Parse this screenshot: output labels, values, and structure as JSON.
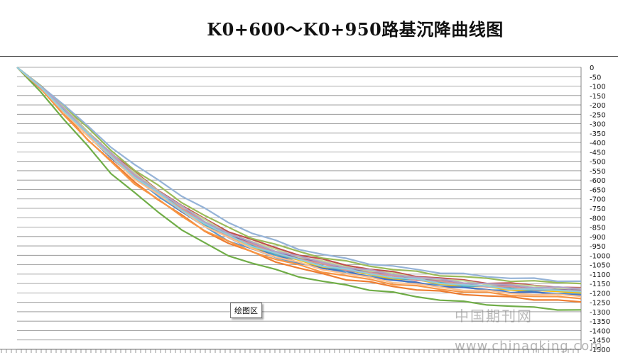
{
  "page": {
    "title": "K0+600～K0+950路基沉降曲线图"
  },
  "tooltip": {
    "text": "绘图区"
  },
  "watermark": {
    "cn": "中国期刊网",
    "url": "www.chinaqking.com"
  },
  "chart_data": {
    "type": "line",
    "title": "K0+600～K0+950路基沉降曲线图",
    "xlabel": "",
    "ylabel": "",
    "ylim": [
      -1500,
      0
    ],
    "y_ticks": [
      0,
      -50,
      -100,
      -150,
      -200,
      -250,
      -300,
      -350,
      -400,
      -450,
      -500,
      -550,
      -600,
      -650,
      -700,
      -750,
      -800,
      -850,
      -900,
      -950,
      -1000,
      -1050,
      -1100,
      -1150,
      -1200,
      -1250,
      -1300,
      -1350,
      -1400,
      -1450,
      -1500
    ],
    "y_tick_labels": [
      "0",
      "-50",
      "-100",
      "-150",
      "-200",
      "-250",
      "-300",
      "-350",
      "-400",
      "-450",
      "-500",
      "-550",
      "-600",
      "-650",
      "-700",
      "-750",
      "-800",
      "-850",
      "-900",
      "-950",
      "-1000",
      "-1050",
      "-1100",
      "-1150",
      "-1200",
      "-1250",
      "-1300",
      "-1350",
      "-1400",
      "-1450",
      "-1500"
    ],
    "grid": true,
    "x": [
      0,
      1,
      2,
      3,
      4,
      5,
      6,
      7,
      8,
      9,
      10,
      11,
      12,
      13,
      14,
      15,
      16,
      17,
      18,
      19,
      20,
      21,
      22,
      23,
      24
    ],
    "series": [
      {
        "color": "#5b9bd5",
        "values": [
          0,
          -110,
          -230,
          -360,
          -480,
          -590,
          -680,
          -770,
          -850,
          -920,
          -970,
          -1010,
          -1040,
          -1070,
          -1090,
          -1110,
          -1130,
          -1145,
          -1160,
          -1170,
          -1180,
          -1190,
          -1195,
          -1200,
          -1205
        ]
      },
      {
        "color": "#ed7d31",
        "values": [
          0,
          -115,
          -245,
          -380,
          -500,
          -610,
          -700,
          -790,
          -870,
          -935,
          -985,
          -1030,
          -1070,
          -1100,
          -1125,
          -1145,
          -1165,
          -1180,
          -1195,
          -1205,
          -1215,
          -1225,
          -1232,
          -1240,
          -1248
        ]
      },
      {
        "color": "#a5a5a5",
        "values": [
          0,
          -105,
          -220,
          -345,
          -460,
          -570,
          -660,
          -745,
          -820,
          -885,
          -935,
          -975,
          -1010,
          -1040,
          -1065,
          -1085,
          -1105,
          -1120,
          -1135,
          -1145,
          -1155,
          -1163,
          -1170,
          -1176,
          -1182
        ]
      },
      {
        "color": "#ffc000",
        "values": [
          0,
          -108,
          -228,
          -355,
          -470,
          -580,
          -672,
          -760,
          -838,
          -905,
          -955,
          -995,
          -1030,
          -1058,
          -1082,
          -1102,
          -1120,
          -1135,
          -1150,
          -1162,
          -1172,
          -1180,
          -1188,
          -1195,
          -1200
        ]
      },
      {
        "color": "#4472c4",
        "values": [
          0,
          -112,
          -235,
          -362,
          -478,
          -588,
          -676,
          -762,
          -840,
          -908,
          -960,
          -1003,
          -1038,
          -1066,
          -1090,
          -1112,
          -1132,
          -1148,
          -1162,
          -1174,
          -1184,
          -1193,
          -1200,
          -1206,
          -1212
        ]
      },
      {
        "color": "#70ad47",
        "values": [
          0,
          -125,
          -280,
          -420,
          -560,
          -670,
          -770,
          -860,
          -940,
          -1000,
          -1040,
          -1080,
          -1110,
          -1140,
          -1160,
          -1180,
          -1200,
          -1220,
          -1235,
          -1250,
          -1260,
          -1270,
          -1280,
          -1285,
          -1290
        ]
      },
      {
        "color": "#c0504d",
        "values": [
          0,
          -100,
          -215,
          -340,
          -455,
          -560,
          -650,
          -735,
          -810,
          -870,
          -920,
          -960,
          -995,
          -1025,
          -1050,
          -1072,
          -1092,
          -1108,
          -1122,
          -1134,
          -1144,
          -1152,
          -1160,
          -1166,
          -1172
        ]
      },
      {
        "color": "#8064a2",
        "values": [
          0,
          -104,
          -222,
          -348,
          -463,
          -573,
          -662,
          -748,
          -824,
          -890,
          -940,
          -980,
          -1015,
          -1045,
          -1070,
          -1090,
          -1110,
          -1126,
          -1140,
          -1152,
          -1162,
          -1170,
          -1177,
          -1183,
          -1188
        ]
      },
      {
        "color": "#4bacc6",
        "values": [
          0,
          -109,
          -232,
          -358,
          -474,
          -584,
          -674,
          -758,
          -834,
          -900,
          -950,
          -992,
          -1026,
          -1055,
          -1078,
          -1098,
          -1116,
          -1132,
          -1146,
          -1158,
          -1168,
          -1176,
          -1183,
          -1189,
          -1194
        ]
      },
      {
        "color": "#f79646",
        "values": [
          0,
          -118,
          -250,
          -385,
          -505,
          -615,
          -705,
          -792,
          -866,
          -930,
          -978,
          -1020,
          -1055,
          -1085,
          -1110,
          -1130,
          -1150,
          -1166,
          -1180,
          -1192,
          -1202,
          -1210,
          -1218,
          -1224,
          -1230
        ]
      },
      {
        "color": "#9bbb59",
        "values": [
          0,
          -98,
          -205,
          -325,
          -440,
          -545,
          -632,
          -715,
          -790,
          -855,
          -905,
          -945,
          -980,
          -1010,
          -1035,
          -1055,
          -1074,
          -1090,
          -1104,
          -1115,
          -1125,
          -1133,
          -1140,
          -1145,
          -1150
        ]
      },
      {
        "color": "#95b3d7",
        "values": [
          0,
          -95,
          -200,
          -315,
          -420,
          -520,
          -600,
          -680,
          -755,
          -825,
          -880,
          -925,
          -965,
          -995,
          -1020,
          -1042,
          -1060,
          -1076,
          -1090,
          -1102,
          -1112,
          -1120,
          -1127,
          -1133,
          -1138
        ]
      },
      {
        "color": "#c3d69b",
        "values": [
          0,
          -102,
          -218,
          -342,
          -458,
          -566,
          -654,
          -740,
          -815,
          -880,
          -930,
          -970,
          -1005,
          -1035,
          -1060,
          -1080,
          -1100,
          -1115,
          -1128,
          -1140,
          -1150,
          -1158,
          -1164,
          -1170,
          -1175
        ]
      },
      {
        "color": "#d99694",
        "values": [
          0,
          -106,
          -226,
          -352,
          -468,
          -578,
          -668,
          -754,
          -830,
          -896,
          -946,
          -986,
          -1020,
          -1050,
          -1074,
          -1094,
          -1112,
          -1128,
          -1142,
          -1154,
          -1164,
          -1172,
          -1179,
          -1185,
          -1190
        ]
      },
      {
        "color": "#b3a2c7",
        "values": [
          0,
          -103,
          -220,
          -344,
          -460,
          -568,
          -658,
          -742,
          -818,
          -884,
          -934,
          -974,
          -1008,
          -1038,
          -1062,
          -1082,
          -1101,
          -1116,
          -1130,
          -1142,
          -1152,
          -1160,
          -1167,
          -1173,
          -1178
        ]
      },
      {
        "color": "#fac090",
        "values": [
          0,
          -111,
          -236,
          -364,
          -480,
          -590,
          -678,
          -764,
          -842,
          -910,
          -962,
          -1006,
          -1042,
          -1072,
          -1098,
          -1120,
          -1140,
          -1156,
          -1170,
          -1182,
          -1192,
          -1200,
          -1207,
          -1213,
          -1218
        ]
      },
      {
        "color": "#92cddc",
        "values": [
          0,
          -107,
          -229,
          -356,
          -471,
          -581,
          -670,
          -756,
          -832,
          -898,
          -948,
          -990,
          -1024,
          -1053,
          -1077,
          -1097,
          -1115,
          -1131,
          -1145,
          -1157,
          -1167,
          -1175,
          -1182,
          -1188,
          -1193
        ]
      }
    ]
  }
}
